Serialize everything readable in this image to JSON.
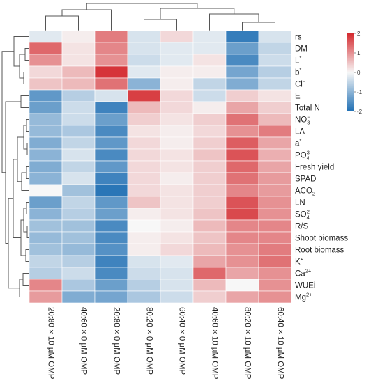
{
  "chart_data": {
    "type": "heatmap",
    "title": "",
    "columns": [
      "20:80 × 10 µM OMP",
      "40:60 × 0 µM OMP",
      "20:80 × 0 µM OMP",
      "80:20 × 0 µM OMP",
      "60:40 × 0 µM OMP",
      "40:60 × 10 µM OMP",
      "80:20 × 10 µM OMP",
      "60:40 × 10 µM OMP"
    ],
    "rows": [
      {
        "label": "rs",
        "sup": "",
        "sub": "",
        "values": [
          -0.2,
          0.1,
          1.2,
          -0.3,
          0.3,
          -0.2,
          -1.8,
          -0.3
        ]
      },
      {
        "label": "DM",
        "sup": "",
        "sub": "",
        "values": [
          1.4,
          0.2,
          1.1,
          -0.3,
          -0.2,
          -0.2,
          -1.3,
          -0.5
        ]
      },
      {
        "label": "L",
        "sup": "*",
        "sub": "",
        "values": [
          1.0,
          0.2,
          1.0,
          -0.4,
          -0.2,
          0.2,
          -1.6,
          -0.4
        ]
      },
      {
        "label": "b",
        "sup": "*",
        "sub": "",
        "values": [
          0.3,
          0.6,
          1.9,
          -0.2,
          0.1,
          0.1,
          -1.2,
          -0.6
        ]
      },
      {
        "label": "Cl",
        "sup": "−",
        "sub": "",
        "values": [
          0.5,
          0.6,
          1.3,
          -1.0,
          0.1,
          -0.5,
          -1.1,
          -0.5
        ]
      },
      {
        "label": "E",
        "sup": "",
        "sub": "",
        "values": [
          -1.4,
          -0.6,
          -0.3,
          1.8,
          0.3,
          -0.4,
          0.4,
          0.2
        ]
      },
      {
        "label": "Total N",
        "sup": "",
        "sub": "",
        "values": [
          -1.3,
          -0.4,
          -1.7,
          0.6,
          0.3,
          0.1,
          0.8,
          0.4
        ]
      },
      {
        "label": "NO",
        "sup": "−",
        "sub": "3",
        "values": [
          -0.9,
          -0.4,
          -1.3,
          0.4,
          0.2,
          0.4,
          1.3,
          0.6
        ]
      },
      {
        "label": "LA",
        "sup": "",
        "sub": "",
        "values": [
          -0.9,
          -0.7,
          -1.6,
          0.2,
          0.1,
          0.3,
          1.0,
          1.2
        ]
      },
      {
        "label": "a",
        "sup": "*",
        "sub": "",
        "values": [
          -1.1,
          -0.5,
          -1.4,
          0.3,
          0.1,
          0.4,
          1.5,
          0.8
        ]
      },
      {
        "label": "PO",
        "sup": "3-",
        "sub": "4",
        "values": [
          -1.0,
          -0.3,
          -1.6,
          0.3,
          0.2,
          0.5,
          1.6,
          0.7
        ]
      },
      {
        "label": "Fresh yield",
        "sup": "",
        "sub": "",
        "values": [
          -1.1,
          -0.5,
          -1.4,
          0.3,
          0.2,
          0.4,
          1.4,
          0.8
        ]
      },
      {
        "label": "SPAD",
        "sup": "",
        "sub": "",
        "values": [
          -1.0,
          -0.3,
          -1.7,
          0.3,
          0.1,
          0.4,
          1.3,
          0.9
        ]
      },
      {
        "label": "ACO",
        "sup": "",
        "sub": "2",
        "values": [
          0.0,
          -0.8,
          -1.9,
          0.3,
          0.2,
          0.4,
          1.1,
          0.9
        ]
      },
      {
        "label": "LN",
        "sup": "",
        "sub": "",
        "values": [
          -1.3,
          -0.5,
          -1.4,
          0.5,
          0.2,
          0.4,
          1.6,
          1.0
        ]
      },
      {
        "label": "SO",
        "sup": "2-",
        "sub": "4",
        "values": [
          -1.0,
          -0.6,
          -1.3,
          0.1,
          0.2,
          0.5,
          1.7,
          1.0
        ]
      },
      {
        "label": "R/S",
        "sup": "",
        "sub": "",
        "values": [
          -0.8,
          -0.8,
          -1.6,
          0.0,
          0.1,
          0.6,
          1.1,
          1.1
        ]
      },
      {
        "label": "Shoot biomass",
        "sup": "",
        "sub": "",
        "values": [
          -0.9,
          -0.8,
          -1.6,
          0.1,
          0.2,
          0.5,
          1.1,
          1.1
        ]
      },
      {
        "label": "Root biomass",
        "sup": "",
        "sub": "",
        "values": [
          -0.8,
          -0.9,
          -1.5,
          0.1,
          0.3,
          0.6,
          1.0,
          1.2
        ]
      },
      {
        "label": "K",
        "sup": "+",
        "sub": "",
        "values": [
          -0.5,
          -0.6,
          -1.7,
          -0.3,
          -0.2,
          0.8,
          1.0,
          1.3
        ]
      },
      {
        "label": "Ca",
        "sup": "2+",
        "sub": "",
        "values": [
          -0.6,
          -0.4,
          -1.6,
          -0.4,
          -0.3,
          1.4,
          0.8,
          1.0
        ]
      },
      {
        "label": "WUEi",
        "sup": "",
        "sub": "",
        "values": [
          1.1,
          -0.7,
          -1.3,
          -0.6,
          -0.3,
          0.6,
          0.0,
          1.0
        ]
      },
      {
        "label": "Mg",
        "sup": "2+",
        "sub": "",
        "values": [
          0.9,
          -1.1,
          -1.2,
          -0.7,
          -0.4,
          0.4,
          0.8,
          1.0
        ]
      }
    ],
    "color_scale": {
      "min": -2,
      "max": 2,
      "ticks": [
        "2",
        "1",
        "0",
        "-1",
        "-2"
      ],
      "low_color": "#1f6fb4",
      "mid_color": "#f7f7f7",
      "high_color": "#d42a2f"
    },
    "legend_placement": "top-right",
    "grid": false
  }
}
